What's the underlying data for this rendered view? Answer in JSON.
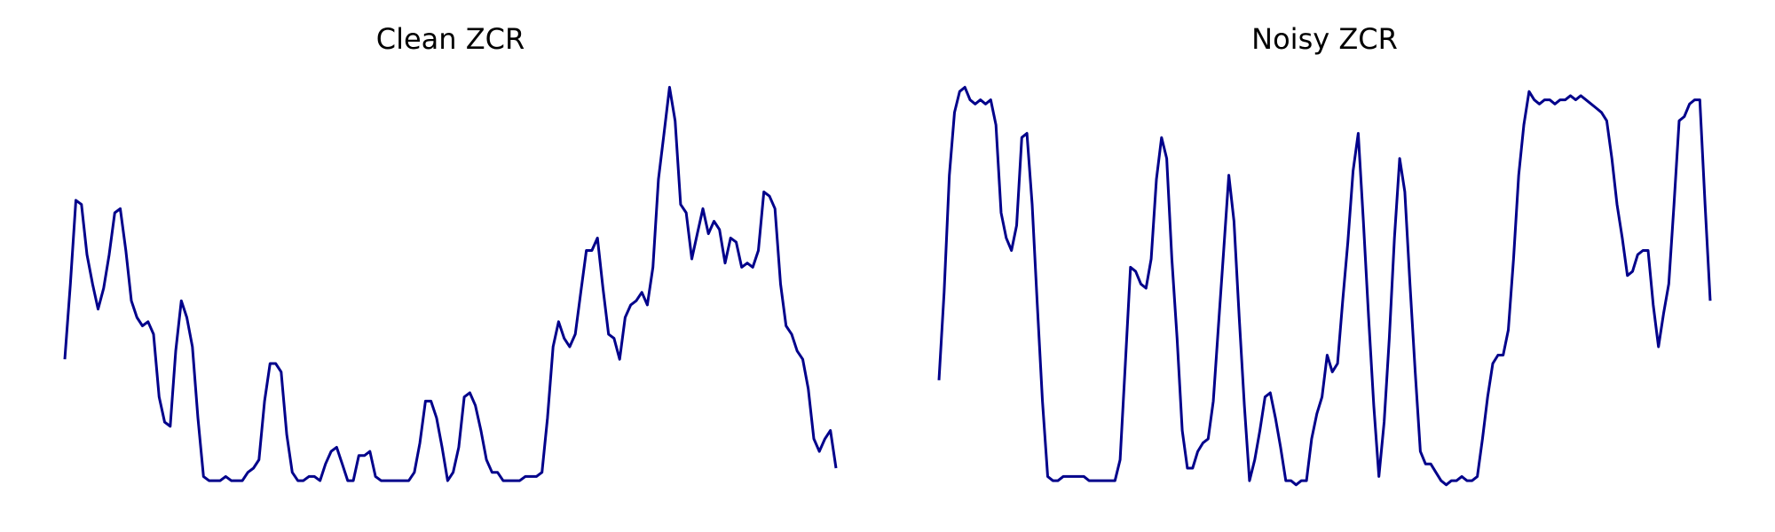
{
  "chart_data": [
    {
      "type": "line",
      "title": "Clean ZCR",
      "color": "#00008b",
      "ylim": [
        0,
        1
      ],
      "values": [
        0.33,
        0.51,
        0.71,
        0.7,
        0.58,
        0.51,
        0.45,
        0.5,
        0.58,
        0.68,
        0.69,
        0.59,
        0.47,
        0.43,
        0.41,
        0.42,
        0.39,
        0.24,
        0.18,
        0.17,
        0.35,
        0.47,
        0.43,
        0.36,
        0.19,
        0.05,
        0.04,
        0.04,
        0.04,
        0.05,
        0.04,
        0.04,
        0.04,
        0.06,
        0.07,
        0.09,
        0.23,
        0.32,
        0.32,
        0.3,
        0.15,
        0.06,
        0.04,
        0.04,
        0.05,
        0.05,
        0.04,
        0.08,
        0.11,
        0.12,
        0.08,
        0.04,
        0.04,
        0.1,
        0.1,
        0.11,
        0.05,
        0.04,
        0.04,
        0.04,
        0.04,
        0.04,
        0.04,
        0.06,
        0.13,
        0.23,
        0.23,
        0.19,
        0.12,
        0.04,
        0.06,
        0.12,
        0.24,
        0.25,
        0.22,
        0.16,
        0.09,
        0.06,
        0.06,
        0.04,
        0.04,
        0.04,
        0.04,
        0.05,
        0.05,
        0.05,
        0.06,
        0.19,
        0.36,
        0.42,
        0.38,
        0.36,
        0.39,
        0.49,
        0.59,
        0.59,
        0.62,
        0.5,
        0.39,
        0.38,
        0.33,
        0.43,
        0.46,
        0.47,
        0.49,
        0.46,
        0.55,
        0.76,
        0.87,
        0.98,
        0.9,
        0.7,
        0.68,
        0.57,
        0.63,
        0.69,
        0.63,
        0.66,
        0.64,
        0.56,
        0.62,
        0.61,
        0.55,
        0.56,
        0.55,
        0.59,
        0.73,
        0.72,
        0.69,
        0.51,
        0.41,
        0.39,
        0.35,
        0.33,
        0.26,
        0.14,
        0.11,
        0.14,
        0.16,
        0.07
      ]
    },
    {
      "type": "line",
      "title": "Noisy ZCR",
      "color": "#00008b",
      "ylim": [
        0,
        1
      ],
      "values": [
        0.28,
        0.49,
        0.77,
        0.92,
        0.97,
        0.98,
        0.95,
        0.94,
        0.95,
        0.94,
        0.95,
        0.89,
        0.68,
        0.62,
        0.59,
        0.65,
        0.86,
        0.87,
        0.7,
        0.46,
        0.23,
        0.05,
        0.04,
        0.04,
        0.05,
        0.05,
        0.05,
        0.05,
        0.05,
        0.04,
        0.04,
        0.04,
        0.04,
        0.04,
        0.04,
        0.09,
        0.32,
        0.55,
        0.54,
        0.51,
        0.5,
        0.57,
        0.76,
        0.86,
        0.81,
        0.57,
        0.38,
        0.16,
        0.07,
        0.07,
        0.11,
        0.13,
        0.14,
        0.23,
        0.41,
        0.59,
        0.77,
        0.66,
        0.43,
        0.22,
        0.04,
        0.09,
        0.16,
        0.24,
        0.25,
        0.19,
        0.12,
        0.04,
        0.04,
        0.03,
        0.04,
        0.04,
        0.14,
        0.2,
        0.24,
        0.34,
        0.3,
        0.32,
        0.47,
        0.61,
        0.78,
        0.87,
        0.66,
        0.43,
        0.22,
        0.05,
        0.18,
        0.38,
        0.62,
        0.81,
        0.73,
        0.51,
        0.3,
        0.11,
        0.08,
        0.08,
        0.06,
        0.04,
        0.03,
        0.04,
        0.04,
        0.05,
        0.04,
        0.04,
        0.05,
        0.14,
        0.24,
        0.32,
        0.34,
        0.34,
        0.4,
        0.57,
        0.77,
        0.89,
        0.97,
        0.95,
        0.94,
        0.95,
        0.95,
        0.94,
        0.95,
        0.95,
        0.96,
        0.95,
        0.96,
        0.95,
        0.94,
        0.93,
        0.92,
        0.9,
        0.81,
        0.7,
        0.62,
        0.53,
        0.54,
        0.58,
        0.59,
        0.59,
        0.46,
        0.36,
        0.44,
        0.51,
        0.7,
        0.9,
        0.91,
        0.94,
        0.95,
        0.95,
        0.7,
        0.47
      ]
    }
  ]
}
